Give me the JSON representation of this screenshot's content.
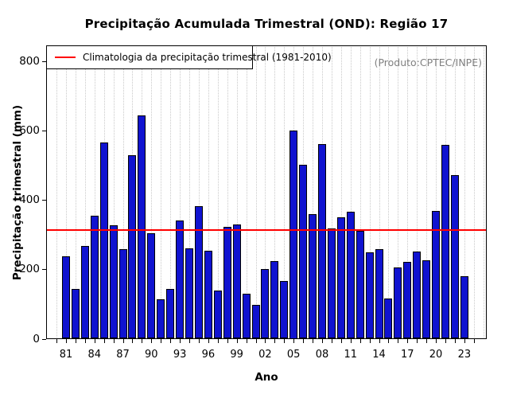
{
  "chart_data": {
    "type": "bar",
    "title": "Precipitação Acumulada Trimestral (OND): Região 17",
    "xlabel": "Ano",
    "ylabel": "Precipitação trimestral (mm)",
    "ylim": [
      0,
      800
    ],
    "yticks": [
      0,
      200,
      400,
      600,
      800
    ],
    "grid": "vertical-dotted",
    "legend_position": "top-left",
    "legend_label": "Climatologia da precipitação trimestral (1981-2010)",
    "annotation": "(Produto:CPTEC/INPE)",
    "categories": [
      "1981",
      "1982",
      "1983",
      "1984",
      "1985",
      "1986",
      "1987",
      "1988",
      "1989",
      "1990",
      "1991",
      "1992",
      "1993",
      "1994",
      "1995",
      "1996",
      "1997",
      "1998",
      "1999",
      "2000",
      "2001",
      "2002",
      "2003",
      "2004",
      "2005",
      "2006",
      "2007",
      "2008",
      "2009",
      "2010",
      "2011",
      "2012",
      "2013",
      "2014",
      "2015",
      "2016",
      "2017",
      "2018",
      "2019",
      "2020",
      "2021",
      "2022",
      "2023"
    ],
    "xtick_labels": [
      "81",
      "84",
      "87",
      "90",
      "93",
      "96",
      "99",
      "02",
      "05",
      "08",
      "11",
      "14",
      "17",
      "20",
      "23"
    ],
    "xtick_label_every": 3,
    "values": [
      237,
      144,
      267,
      355,
      567,
      326,
      258,
      530,
      644,
      305,
      113,
      143,
      340,
      261,
      382,
      253,
      140,
      323,
      329,
      130,
      98,
      202,
      223,
      167,
      600,
      501,
      360,
      562,
      318,
      349,
      366,
      311,
      248,
      259,
      116,
      206,
      222,
      252,
      227,
      368,
      560,
      472,
      180
    ],
    "climatology_value": 313,
    "colors": {
      "bar_fill": "#1013d0",
      "bar_border": "#000000",
      "climatology_line": "#ff0000",
      "grid": "#c9c9c9",
      "annotation_text": "#808080"
    }
  }
}
